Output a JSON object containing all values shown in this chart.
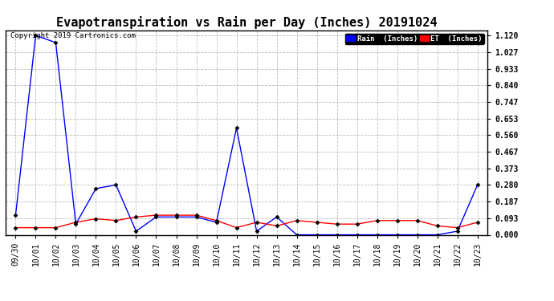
{
  "title": "Evapotranspiration vs Rain per Day (Inches) 20191024",
  "copyright_text": "Copyright 2019 Cartronics.com",
  "x_labels": [
    "09/30",
    "10/01",
    "10/02",
    "10/03",
    "10/04",
    "10/05",
    "10/06",
    "10/07",
    "10/08",
    "10/09",
    "10/10",
    "10/11",
    "10/12",
    "10/13",
    "10/14",
    "10/15",
    "10/16",
    "10/17",
    "10/18",
    "10/19",
    "10/20",
    "10/21",
    "10/22",
    "10/23"
  ],
  "rain_values": [
    0.11,
    1.12,
    1.08,
    0.06,
    0.26,
    0.28,
    0.02,
    0.1,
    0.1,
    0.1,
    0.07,
    0.6,
    0.02,
    0.1,
    0.0,
    0.0,
    0.0,
    0.0,
    0.0,
    0.0,
    0.0,
    0.0,
    0.02,
    0.28
  ],
  "et_values": [
    0.04,
    0.04,
    0.04,
    0.07,
    0.09,
    0.08,
    0.1,
    0.11,
    0.11,
    0.11,
    0.08,
    0.04,
    0.07,
    0.05,
    0.08,
    0.07,
    0.06,
    0.06,
    0.08,
    0.08,
    0.08,
    0.05,
    0.04,
    0.07
  ],
  "rain_color": "#0000FF",
  "et_color": "#FF0000",
  "bg_color": "#FFFFFF",
  "plot_bg_color": "#FFFFFF",
  "grid_color": "#BBBBBB",
  "yticks": [
    0.0,
    0.093,
    0.187,
    0.28,
    0.373,
    0.467,
    0.56,
    0.653,
    0.747,
    0.84,
    0.933,
    1.027,
    1.12
  ],
  "ylim": [
    0.0,
    1.15
  ],
  "legend_rain_bg": "#0000FF",
  "legend_et_bg": "#FF0000",
  "legend_rain_label": "Rain  (Inches)",
  "legend_et_label": "ET  (Inches)",
  "title_fontsize": 11,
  "tick_fontsize": 7,
  "copyright_fontsize": 6.5,
  "marker": "D",
  "marker_size": 2.5
}
